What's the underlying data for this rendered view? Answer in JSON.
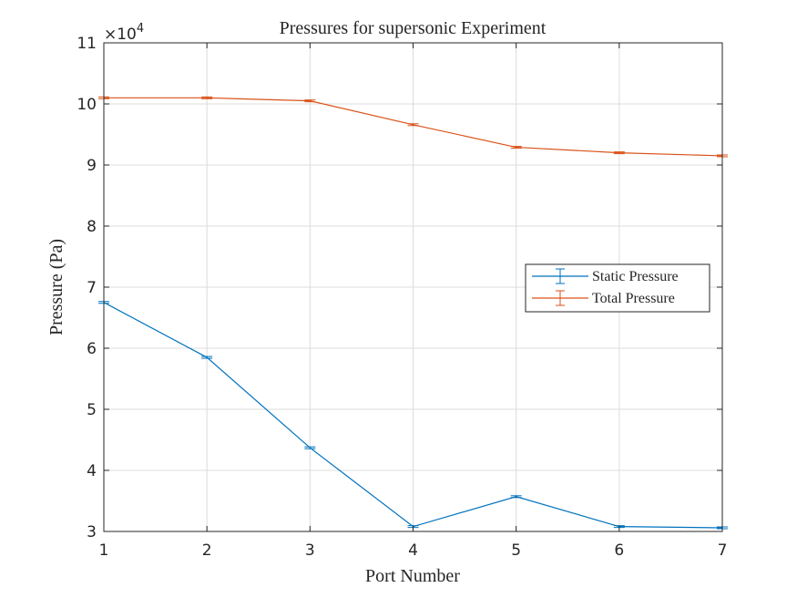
{
  "chart_data": {
    "type": "line",
    "title": "Pressures for supersonic Experiment",
    "xlabel": "Port Number",
    "ylabel": "Pressure (Pa)",
    "exponent_label": "×10",
    "exponent_power": "4",
    "y_scale": 10000,
    "x": [
      1,
      2,
      3,
      4,
      5,
      6,
      7
    ],
    "xlim": [
      1,
      7
    ],
    "ylim": [
      30000,
      110000
    ],
    "x_ticks": [
      1,
      2,
      3,
      4,
      5,
      6,
      7
    ],
    "y_ticks": [
      30000,
      40000,
      50000,
      60000,
      70000,
      80000,
      90000,
      100000,
      110000
    ],
    "x_tick_labels": [
      "1",
      "2",
      "3",
      "4",
      "5",
      "6",
      "7"
    ],
    "y_tick_labels": [
      "3",
      "4",
      "5",
      "6",
      "7",
      "8",
      "9",
      "10",
      "11"
    ],
    "grid": true,
    "legend_position": "right",
    "series": [
      {
        "name": "Static Pressure",
        "color": "#0072bd",
        "values": [
          67500,
          58500,
          43700,
          30800,
          35700,
          30800,
          30600
        ],
        "error": [
          150,
          150,
          150,
          150,
          150,
          150,
          150
        ]
      },
      {
        "name": "Total Pressure",
        "color": "#d95319",
        "values": [
          101000,
          101000,
          100500,
          96600,
          92900,
          92000,
          91500
        ],
        "error": [
          150,
          150,
          150,
          150,
          150,
          150,
          150
        ]
      }
    ]
  }
}
